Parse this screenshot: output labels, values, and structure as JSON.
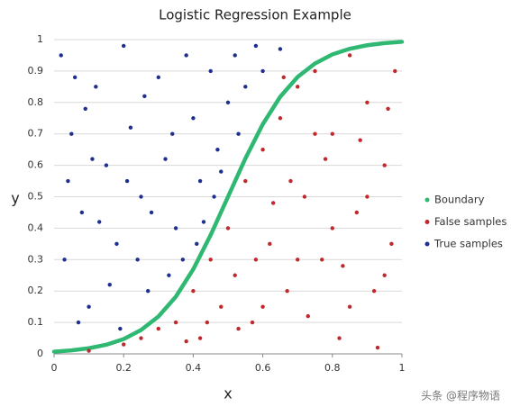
{
  "chart_data": {
    "type": "scatter",
    "title": "Logistic Regression Example",
    "x_label": "x",
    "y_label": "y",
    "xlim": [
      0,
      1
    ],
    "ylim": [
      0,
      1
    ],
    "xticks": [
      0,
      0.2,
      0.4,
      0.6,
      0.8,
      1
    ],
    "yticks": [
      0,
      0.1,
      0.2,
      0.3,
      0.4,
      0.5,
      0.6,
      0.7,
      0.8,
      0.9,
      1
    ],
    "grid": true,
    "legend": "right",
    "series": [
      {
        "name": "Boundary",
        "color": "#2eb872",
        "line": true,
        "x": [
          0,
          0.05,
          0.1,
          0.15,
          0.2,
          0.25,
          0.3,
          0.35,
          0.4,
          0.45,
          0.5,
          0.55,
          0.6,
          0.65,
          0.7,
          0.75,
          0.8,
          0.85,
          0.9,
          0.95,
          1
        ],
        "values": [
          0.007,
          0.011,
          0.018,
          0.029,
          0.047,
          0.076,
          0.119,
          0.182,
          0.269,
          0.378,
          0.5,
          0.622,
          0.731,
          0.818,
          0.881,
          0.924,
          0.953,
          0.971,
          0.982,
          0.989,
          0.993
        ]
      },
      {
        "name": "False samples",
        "color": "#c0282d",
        "x": [
          0.1,
          0.2,
          0.25,
          0.3,
          0.35,
          0.4,
          0.42,
          0.45,
          0.48,
          0.5,
          0.52,
          0.55,
          0.57,
          0.6,
          0.62,
          0.65,
          0.67,
          0.7,
          0.72,
          0.75,
          0.77,
          0.8,
          0.82,
          0.85,
          0.87,
          0.9,
          0.92,
          0.95,
          0.97,
          0.98,
          0.6,
          0.68,
          0.73,
          0.78,
          0.83,
          0.88,
          0.93,
          0.96,
          0.53,
          0.63,
          0.7,
          0.75,
          0.8,
          0.85,
          0.9,
          0.95,
          0.58,
          0.44,
          0.38,
          0.66
        ],
        "values": [
          0.01,
          0.03,
          0.05,
          0.08,
          0.1,
          0.2,
          0.05,
          0.3,
          0.15,
          0.4,
          0.25,
          0.55,
          0.1,
          0.65,
          0.35,
          0.75,
          0.2,
          0.85,
          0.5,
          0.9,
          0.3,
          0.7,
          0.05,
          0.95,
          0.45,
          0.8,
          0.2,
          0.6,
          0.35,
          0.9,
          0.15,
          0.55,
          0.12,
          0.62,
          0.28,
          0.68,
          0.02,
          0.78,
          0.08,
          0.48,
          0.3,
          0.7,
          0.4,
          0.15,
          0.5,
          0.25,
          0.3,
          0.1,
          0.04,
          0.88
        ]
      },
      {
        "name": "True samples",
        "color": "#1f2f8f",
        "x": [
          0.02,
          0.05,
          0.08,
          0.03,
          0.1,
          0.12,
          0.15,
          0.07,
          0.18,
          0.2,
          0.22,
          0.25,
          0.27,
          0.3,
          0.32,
          0.35,
          0.33,
          0.38,
          0.4,
          0.42,
          0.45,
          0.47,
          0.5,
          0.52,
          0.55,
          0.58,
          0.6,
          0.65,
          0.13,
          0.04,
          0.09,
          0.16,
          0.24,
          0.28,
          0.37,
          0.43,
          0.48,
          0.19,
          0.06,
          0.11,
          0.21,
          0.26,
          0.34,
          0.41,
          0.46,
          0.53
        ],
        "values": [
          0.95,
          0.7,
          0.45,
          0.3,
          0.15,
          0.85,
          0.6,
          0.1,
          0.35,
          0.98,
          0.72,
          0.5,
          0.2,
          0.88,
          0.62,
          0.4,
          0.25,
          0.95,
          0.75,
          0.55,
          0.9,
          0.65,
          0.8,
          0.95,
          0.85,
          0.98,
          0.9,
          0.97,
          0.42,
          0.55,
          0.78,
          0.22,
          0.3,
          0.45,
          0.3,
          0.42,
          0.58,
          0.08,
          0.88,
          0.62,
          0.55,
          0.82,
          0.7,
          0.35,
          0.5,
          0.7
        ]
      }
    ],
    "watermark": "头条 @程序物语"
  }
}
